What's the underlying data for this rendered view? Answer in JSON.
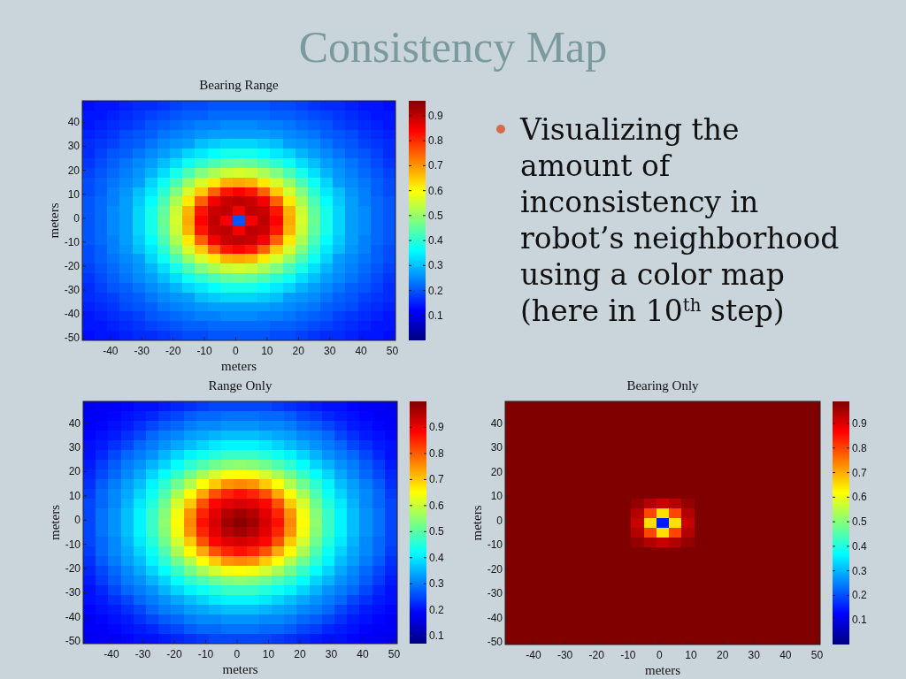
{
  "chart_data": [
    {
      "type": "other",
      "title": "Consistency Map",
      "annotations": [
        "Visualizing the amount of inconsistency in robot’s neighborhood using a color map (here in 10$^{th}$ step)"
      ]
    },
    {
      "type": "heatmap",
      "title": "Bearing Range",
      "xlabel": "meters",
      "ylabel": "meters",
      "x": [
        -47,
        -43,
        -39,
        -35,
        -31,
        -27,
        -23,
        -19,
        -15,
        -11,
        -7,
        -3,
        1,
        5,
        9,
        13,
        17,
        21,
        25,
        29,
        33,
        37,
        41,
        45,
        49
      ],
      "y": [
        47,
        43,
        39,
        35,
        31,
        27,
        23,
        19,
        15,
        11,
        7,
        3,
        -1,
        -5,
        -9,
        -13,
        -17,
        -21,
        -25,
        -29,
        -33,
        -37,
        -41,
        -45,
        -49
      ],
      "xlim": [
        -49,
        51
      ],
      "xticks": [
        -40,
        -30,
        -20,
        -10,
        0,
        10,
        20,
        30,
        40,
        50
      ],
      "ylim": [
        -51,
        49
      ],
      "yticks": [
        -50,
        -40,
        -30,
        -20,
        -10,
        0,
        10,
        20,
        30,
        40
      ],
      "clim": [
        0,
        0.96
      ],
      "cticks": [
        0.1,
        0.2,
        0.3,
        0.4,
        0.5,
        0.6,
        0.7,
        0.8,
        0.9
      ],
      "cells": [
        [
          0.13,
          0.14,
          0.14,
          0.15,
          0.16,
          0.16,
          0.17,
          0.18,
          0.19,
          0.19,
          0.2,
          0.2,
          0.2,
          0.2,
          0.2,
          0.19,
          0.19,
          0.18,
          0.17,
          0.16,
          0.16,
          0.15,
          0.14,
          0.14,
          0.13
        ],
        [
          0.14,
          0.14,
          0.15,
          0.16,
          0.17,
          0.18,
          0.19,
          0.2,
          0.21,
          0.21,
          0.22,
          0.22,
          0.22,
          0.22,
          0.22,
          0.21,
          0.21,
          0.2,
          0.19,
          0.18,
          0.17,
          0.16,
          0.15,
          0.14,
          0.14
        ],
        [
          0.14,
          0.15,
          0.16,
          0.17,
          0.18,
          0.2,
          0.21,
          0.22,
          0.23,
          0.24,
          0.24,
          0.25,
          0.25,
          0.25,
          0.24,
          0.24,
          0.23,
          0.22,
          0.21,
          0.2,
          0.18,
          0.17,
          0.16,
          0.15,
          0.14
        ],
        [
          0.15,
          0.16,
          0.17,
          0.19,
          0.2,
          0.21,
          0.23,
          0.24,
          0.25,
          0.26,
          0.27,
          0.27,
          0.27,
          0.27,
          0.27,
          0.26,
          0.25,
          0.24,
          0.23,
          0.21,
          0.2,
          0.19,
          0.17,
          0.16,
          0.15
        ],
        [
          0.16,
          0.17,
          0.18,
          0.2,
          0.21,
          0.23,
          0.25,
          0.26,
          0.27,
          0.3,
          0.31,
          0.32,
          0.32,
          0.32,
          0.31,
          0.3,
          0.27,
          0.26,
          0.25,
          0.23,
          0.21,
          0.2,
          0.18,
          0.17,
          0.16
        ],
        [
          0.16,
          0.18,
          0.2,
          0.21,
          0.23,
          0.25,
          0.27,
          0.29,
          0.32,
          0.34,
          0.36,
          0.38,
          0.38,
          0.38,
          0.36,
          0.34,
          0.32,
          0.29,
          0.27,
          0.25,
          0.23,
          0.21,
          0.2,
          0.18,
          0.16
        ],
        [
          0.17,
          0.19,
          0.21,
          0.23,
          0.25,
          0.27,
          0.3,
          0.33,
          0.37,
          0.4,
          0.43,
          0.45,
          0.46,
          0.45,
          0.43,
          0.4,
          0.37,
          0.33,
          0.3,
          0.27,
          0.25,
          0.23,
          0.21,
          0.19,
          0.17
        ],
        [
          0.18,
          0.2,
          0.22,
          0.24,
          0.26,
          0.29,
          0.33,
          0.38,
          0.43,
          0.48,
          0.52,
          0.55,
          0.56,
          0.55,
          0.52,
          0.48,
          0.43,
          0.38,
          0.33,
          0.29,
          0.26,
          0.24,
          0.22,
          0.2,
          0.18
        ],
        [
          0.19,
          0.21,
          0.23,
          0.25,
          0.27,
          0.32,
          0.37,
          0.43,
          0.5,
          0.56,
          0.62,
          0.67,
          0.68,
          0.67,
          0.62,
          0.56,
          0.5,
          0.43,
          0.37,
          0.32,
          0.27,
          0.25,
          0.23,
          0.21,
          0.19
        ],
        [
          0.19,
          0.21,
          0.24,
          0.26,
          0.3,
          0.34,
          0.4,
          0.48,
          0.56,
          0.65,
          0.75,
          0.82,
          0.84,
          0.82,
          0.75,
          0.65,
          0.56,
          0.48,
          0.4,
          0.34,
          0.3,
          0.26,
          0.24,
          0.21,
          0.19
        ],
        [
          0.2,
          0.22,
          0.24,
          0.27,
          0.31,
          0.36,
          0.43,
          0.52,
          0.62,
          0.75,
          0.85,
          0.89,
          0.9,
          0.89,
          0.85,
          0.75,
          0.62,
          0.52,
          0.43,
          0.36,
          0.31,
          0.27,
          0.24,
          0.22,
          0.2
        ],
        [
          0.2,
          0.22,
          0.25,
          0.27,
          0.32,
          0.38,
          0.45,
          0.55,
          0.67,
          0.82,
          0.89,
          0.9,
          0.85,
          0.9,
          0.89,
          0.82,
          0.67,
          0.55,
          0.45,
          0.38,
          0.32,
          0.27,
          0.25,
          0.22,
          0.2
        ],
        [
          0.2,
          0.22,
          0.25,
          0.27,
          0.32,
          0.38,
          0.46,
          0.56,
          0.68,
          0.84,
          0.9,
          0.85,
          0.2,
          0.85,
          0.9,
          0.84,
          0.68,
          0.56,
          0.46,
          0.38,
          0.32,
          0.27,
          0.25,
          0.22,
          0.2
        ],
        [
          0.2,
          0.22,
          0.25,
          0.27,
          0.32,
          0.38,
          0.45,
          0.55,
          0.67,
          0.82,
          0.89,
          0.9,
          0.85,
          0.9,
          0.89,
          0.82,
          0.67,
          0.55,
          0.45,
          0.38,
          0.32,
          0.27,
          0.25,
          0.22,
          0.2
        ],
        [
          0.2,
          0.22,
          0.24,
          0.27,
          0.31,
          0.36,
          0.43,
          0.52,
          0.62,
          0.75,
          0.85,
          0.89,
          0.9,
          0.89,
          0.85,
          0.75,
          0.62,
          0.52,
          0.43,
          0.36,
          0.31,
          0.27,
          0.24,
          0.22,
          0.2
        ],
        [
          0.19,
          0.21,
          0.24,
          0.26,
          0.3,
          0.34,
          0.4,
          0.48,
          0.56,
          0.65,
          0.75,
          0.82,
          0.84,
          0.82,
          0.75,
          0.65,
          0.56,
          0.48,
          0.4,
          0.34,
          0.3,
          0.26,
          0.24,
          0.21,
          0.19
        ],
        [
          0.19,
          0.21,
          0.23,
          0.25,
          0.27,
          0.32,
          0.37,
          0.43,
          0.5,
          0.56,
          0.62,
          0.67,
          0.68,
          0.67,
          0.62,
          0.56,
          0.5,
          0.43,
          0.37,
          0.32,
          0.27,
          0.25,
          0.23,
          0.21,
          0.19
        ],
        [
          0.18,
          0.2,
          0.22,
          0.24,
          0.26,
          0.29,
          0.33,
          0.38,
          0.43,
          0.48,
          0.52,
          0.55,
          0.56,
          0.55,
          0.52,
          0.48,
          0.43,
          0.38,
          0.33,
          0.29,
          0.26,
          0.24,
          0.22,
          0.2,
          0.18
        ],
        [
          0.17,
          0.19,
          0.21,
          0.23,
          0.25,
          0.27,
          0.3,
          0.33,
          0.37,
          0.4,
          0.43,
          0.45,
          0.46,
          0.45,
          0.43,
          0.4,
          0.37,
          0.33,
          0.3,
          0.27,
          0.25,
          0.23,
          0.21,
          0.19,
          0.17
        ],
        [
          0.16,
          0.18,
          0.2,
          0.21,
          0.23,
          0.25,
          0.27,
          0.29,
          0.32,
          0.34,
          0.36,
          0.38,
          0.38,
          0.38,
          0.36,
          0.34,
          0.32,
          0.29,
          0.27,
          0.25,
          0.23,
          0.21,
          0.2,
          0.18,
          0.16
        ],
        [
          0.16,
          0.17,
          0.18,
          0.2,
          0.21,
          0.23,
          0.25,
          0.26,
          0.27,
          0.3,
          0.31,
          0.32,
          0.32,
          0.32,
          0.31,
          0.3,
          0.27,
          0.26,
          0.25,
          0.23,
          0.21,
          0.2,
          0.18,
          0.17,
          0.16
        ],
        [
          0.15,
          0.16,
          0.17,
          0.19,
          0.2,
          0.21,
          0.23,
          0.24,
          0.25,
          0.26,
          0.27,
          0.27,
          0.27,
          0.27,
          0.27,
          0.26,
          0.25,
          0.24,
          0.23,
          0.21,
          0.2,
          0.19,
          0.17,
          0.16,
          0.15
        ],
        [
          0.14,
          0.15,
          0.16,
          0.17,
          0.18,
          0.2,
          0.21,
          0.22,
          0.23,
          0.24,
          0.24,
          0.25,
          0.25,
          0.25,
          0.24,
          0.24,
          0.23,
          0.22,
          0.21,
          0.2,
          0.18,
          0.17,
          0.16,
          0.15,
          0.14
        ],
        [
          0.14,
          0.14,
          0.15,
          0.16,
          0.17,
          0.18,
          0.19,
          0.2,
          0.21,
          0.21,
          0.22,
          0.22,
          0.22,
          0.22,
          0.22,
          0.21,
          0.21,
          0.2,
          0.19,
          0.18,
          0.17,
          0.16,
          0.15,
          0.14,
          0.14
        ],
        [
          0.13,
          0.14,
          0.14,
          0.15,
          0.16,
          0.16,
          0.17,
          0.18,
          0.19,
          0.19,
          0.2,
          0.2,
          0.2,
          0.2,
          0.2,
          0.19,
          0.19,
          0.18,
          0.17,
          0.16,
          0.16,
          0.15,
          0.14,
          0.14,
          0.13
        ]
      ]
    },
    {
      "type": "heatmap",
      "title": "Range Only",
      "xlabel": "meters",
      "ylabel": "meters",
      "x": [
        -47,
        -43,
        -39,
        -35,
        -31,
        -27,
        -23,
        -19,
        -15,
        -11,
        -7,
        -3,
        1,
        5,
        9,
        13,
        17,
        21,
        25,
        29,
        33,
        37,
        41,
        45,
        49
      ],
      "y": [
        47,
        43,
        39,
        35,
        31,
        27,
        23,
        19,
        15,
        11,
        7,
        3,
        -1,
        -5,
        -9,
        -13,
        -17,
        -21,
        -25,
        -29,
        -33,
        -37,
        -41,
        -45,
        -49
      ],
      "xlim": [
        -49,
        51
      ],
      "xticks": [
        -40,
        -30,
        -20,
        -10,
        0,
        10,
        20,
        30,
        40,
        50
      ],
      "ylim": [
        -51,
        49
      ],
      "yticks": [
        -50,
        -40,
        -30,
        -20,
        -10,
        0,
        10,
        20,
        30,
        40
      ],
      "clim": [
        0.07,
        1
      ],
      "cticks": [
        0.1,
        0.2,
        0.3,
        0.4,
        0.5,
        0.6,
        0.7,
        0.8,
        0.9
      ],
      "cells": [
        [
          0.17,
          0.18,
          0.18,
          0.19,
          0.2,
          0.2,
          0.21,
          0.22,
          0.23,
          0.24,
          0.25,
          0.25,
          0.25,
          0.25,
          0.25,
          0.24,
          0.23,
          0.22,
          0.21,
          0.2,
          0.2,
          0.19,
          0.18,
          0.18,
          0.17
        ],
        [
          0.18,
          0.18,
          0.19,
          0.2,
          0.21,
          0.22,
          0.24,
          0.25,
          0.27,
          0.28,
          0.28,
          0.29,
          0.29,
          0.29,
          0.28,
          0.28,
          0.27,
          0.25,
          0.24,
          0.22,
          0.21,
          0.2,
          0.19,
          0.18,
          0.18
        ],
        [
          0.18,
          0.19,
          0.2,
          0.21,
          0.23,
          0.25,
          0.27,
          0.28,
          0.3,
          0.31,
          0.31,
          0.32,
          0.32,
          0.32,
          0.31,
          0.31,
          0.3,
          0.28,
          0.27,
          0.25,
          0.23,
          0.21,
          0.2,
          0.19,
          0.18
        ],
        [
          0.19,
          0.2,
          0.21,
          0.23,
          0.25,
          0.28,
          0.3,
          0.31,
          0.33,
          0.34,
          0.35,
          0.36,
          0.36,
          0.36,
          0.35,
          0.34,
          0.33,
          0.31,
          0.3,
          0.28,
          0.25,
          0.23,
          0.21,
          0.2,
          0.19
        ],
        [
          0.2,
          0.21,
          0.23,
          0.25,
          0.28,
          0.3,
          0.32,
          0.34,
          0.36,
          0.38,
          0.4,
          0.41,
          0.41,
          0.41,
          0.4,
          0.38,
          0.36,
          0.34,
          0.32,
          0.3,
          0.28,
          0.25,
          0.23,
          0.21,
          0.2
        ],
        [
          0.2,
          0.22,
          0.25,
          0.28,
          0.3,
          0.32,
          0.35,
          0.38,
          0.41,
          0.43,
          0.45,
          0.47,
          0.47,
          0.47,
          0.45,
          0.43,
          0.41,
          0.38,
          0.35,
          0.32,
          0.3,
          0.28,
          0.25,
          0.22,
          0.2
        ],
        [
          0.21,
          0.24,
          0.27,
          0.3,
          0.32,
          0.35,
          0.38,
          0.42,
          0.46,
          0.49,
          0.52,
          0.54,
          0.55,
          0.54,
          0.52,
          0.49,
          0.46,
          0.42,
          0.38,
          0.35,
          0.32,
          0.3,
          0.27,
          0.24,
          0.21
        ],
        [
          0.22,
          0.25,
          0.28,
          0.31,
          0.34,
          0.38,
          0.42,
          0.47,
          0.52,
          0.57,
          0.61,
          0.64,
          0.65,
          0.64,
          0.61,
          0.57,
          0.52,
          0.47,
          0.42,
          0.38,
          0.34,
          0.31,
          0.28,
          0.25,
          0.22
        ],
        [
          0.23,
          0.27,
          0.3,
          0.33,
          0.36,
          0.41,
          0.46,
          0.52,
          0.58,
          0.65,
          0.7,
          0.75,
          0.76,
          0.75,
          0.7,
          0.65,
          0.58,
          0.52,
          0.46,
          0.41,
          0.36,
          0.33,
          0.3,
          0.27,
          0.23
        ],
        [
          0.24,
          0.28,
          0.31,
          0.34,
          0.38,
          0.43,
          0.49,
          0.57,
          0.65,
          0.73,
          0.81,
          0.85,
          0.87,
          0.85,
          0.81,
          0.73,
          0.65,
          0.57,
          0.49,
          0.43,
          0.38,
          0.34,
          0.31,
          0.28,
          0.24
        ],
        [
          0.25,
          0.28,
          0.31,
          0.35,
          0.4,
          0.45,
          0.52,
          0.61,
          0.7,
          0.81,
          0.88,
          0.91,
          0.92,
          0.91,
          0.88,
          0.81,
          0.7,
          0.61,
          0.52,
          0.45,
          0.4,
          0.35,
          0.31,
          0.28,
          0.25
        ],
        [
          0.25,
          0.29,
          0.32,
          0.36,
          0.41,
          0.47,
          0.54,
          0.64,
          0.75,
          0.85,
          0.91,
          0.95,
          0.97,
          0.95,
          0.91,
          0.85,
          0.75,
          0.64,
          0.54,
          0.47,
          0.41,
          0.36,
          0.32,
          0.29,
          0.25
        ],
        [
          0.25,
          0.29,
          0.32,
          0.36,
          0.41,
          0.47,
          0.55,
          0.65,
          0.76,
          0.87,
          0.92,
          0.97,
          0.99,
          0.97,
          0.92,
          0.87,
          0.76,
          0.65,
          0.55,
          0.47,
          0.41,
          0.36,
          0.32,
          0.29,
          0.25
        ],
        [
          0.25,
          0.29,
          0.32,
          0.36,
          0.41,
          0.47,
          0.54,
          0.64,
          0.75,
          0.85,
          0.91,
          0.95,
          0.97,
          0.95,
          0.91,
          0.85,
          0.75,
          0.64,
          0.54,
          0.47,
          0.41,
          0.36,
          0.32,
          0.29,
          0.25
        ],
        [
          0.25,
          0.28,
          0.31,
          0.35,
          0.4,
          0.45,
          0.52,
          0.61,
          0.7,
          0.81,
          0.88,
          0.91,
          0.92,
          0.91,
          0.88,
          0.81,
          0.7,
          0.61,
          0.52,
          0.45,
          0.4,
          0.35,
          0.31,
          0.28,
          0.25
        ],
        [
          0.24,
          0.28,
          0.31,
          0.34,
          0.38,
          0.43,
          0.49,
          0.57,
          0.65,
          0.73,
          0.81,
          0.85,
          0.87,
          0.85,
          0.81,
          0.73,
          0.65,
          0.57,
          0.49,
          0.43,
          0.38,
          0.34,
          0.31,
          0.28,
          0.24
        ],
        [
          0.23,
          0.27,
          0.3,
          0.33,
          0.36,
          0.41,
          0.46,
          0.52,
          0.58,
          0.65,
          0.7,
          0.75,
          0.76,
          0.75,
          0.7,
          0.65,
          0.58,
          0.52,
          0.46,
          0.41,
          0.36,
          0.33,
          0.3,
          0.27,
          0.23
        ],
        [
          0.22,
          0.25,
          0.28,
          0.31,
          0.34,
          0.38,
          0.42,
          0.47,
          0.52,
          0.57,
          0.61,
          0.64,
          0.65,
          0.64,
          0.61,
          0.57,
          0.52,
          0.47,
          0.42,
          0.38,
          0.34,
          0.31,
          0.28,
          0.25,
          0.22
        ],
        [
          0.21,
          0.24,
          0.27,
          0.3,
          0.32,
          0.35,
          0.38,
          0.42,
          0.46,
          0.49,
          0.52,
          0.54,
          0.55,
          0.54,
          0.52,
          0.49,
          0.46,
          0.42,
          0.38,
          0.35,
          0.32,
          0.3,
          0.27,
          0.24,
          0.21
        ],
        [
          0.2,
          0.22,
          0.25,
          0.28,
          0.3,
          0.32,
          0.35,
          0.38,
          0.41,
          0.43,
          0.45,
          0.47,
          0.47,
          0.47,
          0.45,
          0.43,
          0.41,
          0.38,
          0.35,
          0.32,
          0.3,
          0.28,
          0.25,
          0.22,
          0.2
        ],
        [
          0.2,
          0.21,
          0.23,
          0.25,
          0.28,
          0.3,
          0.32,
          0.34,
          0.36,
          0.38,
          0.4,
          0.41,
          0.41,
          0.41,
          0.4,
          0.38,
          0.36,
          0.34,
          0.32,
          0.3,
          0.28,
          0.25,
          0.23,
          0.21,
          0.2
        ],
        [
          0.19,
          0.2,
          0.21,
          0.23,
          0.25,
          0.28,
          0.3,
          0.31,
          0.33,
          0.34,
          0.35,
          0.36,
          0.36,
          0.36,
          0.35,
          0.34,
          0.33,
          0.31,
          0.3,
          0.28,
          0.25,
          0.23,
          0.21,
          0.2,
          0.19
        ],
        [
          0.18,
          0.19,
          0.2,
          0.21,
          0.23,
          0.25,
          0.27,
          0.28,
          0.3,
          0.31,
          0.31,
          0.32,
          0.32,
          0.32,
          0.31,
          0.31,
          0.3,
          0.28,
          0.27,
          0.25,
          0.23,
          0.21,
          0.2,
          0.19,
          0.18
        ],
        [
          0.18,
          0.18,
          0.19,
          0.2,
          0.21,
          0.22,
          0.24,
          0.25,
          0.27,
          0.28,
          0.28,
          0.29,
          0.29,
          0.29,
          0.28,
          0.28,
          0.27,
          0.25,
          0.24,
          0.22,
          0.21,
          0.2,
          0.19,
          0.18,
          0.18
        ],
        [
          0.17,
          0.18,
          0.18,
          0.19,
          0.2,
          0.2,
          0.21,
          0.22,
          0.23,
          0.24,
          0.25,
          0.25,
          0.25,
          0.25,
          0.25,
          0.24,
          0.23,
          0.22,
          0.21,
          0.2,
          0.2,
          0.19,
          0.18,
          0.18,
          0.17
        ]
      ]
    },
    {
      "type": "heatmap",
      "title": "Bearing Only",
      "xlabel": "meters",
      "ylabel": "meters",
      "x": [
        -47,
        -43,
        -39,
        -35,
        -31,
        -27,
        -23,
        -19,
        -15,
        -11,
        -7,
        -3,
        1,
        5,
        9,
        13,
        17,
        21,
        25,
        29,
        33,
        37,
        41,
        45,
        49
      ],
      "y": [
        47,
        43,
        39,
        35,
        31,
        27,
        23,
        19,
        15,
        11,
        7,
        3,
        -1,
        -5,
        -9,
        -13,
        -17,
        -21,
        -25,
        -29,
        -33,
        -37,
        -41,
        -45,
        -49
      ],
      "xlim": [
        -49,
        51
      ],
      "xticks": [
        -40,
        -30,
        -20,
        -10,
        0,
        10,
        20,
        30,
        40,
        50
      ],
      "ylim": [
        -51,
        49
      ],
      "yticks": [
        -50,
        -40,
        -30,
        -20,
        -10,
        0,
        10,
        20,
        30,
        40
      ],
      "clim": [
        0,
        0.99
      ],
      "cticks": [
        0.1,
        0.2,
        0.3,
        0.4,
        0.5,
        0.6,
        0.7,
        0.8,
        0.9
      ],
      "cells": [
        [
          0.99,
          0.99,
          0.99,
          0.99,
          0.99,
          0.99,
          0.99,
          0.99,
          0.99,
          0.99,
          0.99,
          0.99,
          0.99,
          0.99,
          0.99,
          0.99,
          0.99,
          0.99,
          0.99,
          0.99,
          0.99,
          0.99,
          0.99,
          0.99,
          0.99
        ],
        [
          0.99,
          0.99,
          0.99,
          0.99,
          0.99,
          0.99,
          0.99,
          0.99,
          0.99,
          0.99,
          0.99,
          0.99,
          0.99,
          0.99,
          0.99,
          0.99,
          0.99,
          0.99,
          0.99,
          0.99,
          0.99,
          0.99,
          0.99,
          0.99,
          0.99
        ],
        [
          0.99,
          0.99,
          0.99,
          0.99,
          0.99,
          0.99,
          0.99,
          0.99,
          0.99,
          0.99,
          0.99,
          0.99,
          0.99,
          0.99,
          0.99,
          0.99,
          0.99,
          0.99,
          0.99,
          0.99,
          0.99,
          0.99,
          0.99,
          0.99,
          0.99
        ],
        [
          0.99,
          0.99,
          0.99,
          0.99,
          0.99,
          0.99,
          0.99,
          0.99,
          0.99,
          0.99,
          0.99,
          0.99,
          0.99,
          0.99,
          0.99,
          0.99,
          0.99,
          0.99,
          0.99,
          0.99,
          0.99,
          0.99,
          0.99,
          0.99,
          0.99
        ],
        [
          0.99,
          0.99,
          0.99,
          0.99,
          0.99,
          0.99,
          0.99,
          0.99,
          0.99,
          0.99,
          0.99,
          0.99,
          0.99,
          0.99,
          0.99,
          0.99,
          0.99,
          0.99,
          0.99,
          0.99,
          0.99,
          0.99,
          0.99,
          0.99,
          0.99
        ],
        [
          0.99,
          0.99,
          0.99,
          0.99,
          0.99,
          0.99,
          0.99,
          0.99,
          0.99,
          0.99,
          0.99,
          0.99,
          0.99,
          0.99,
          0.99,
          0.99,
          0.99,
          0.99,
          0.99,
          0.99,
          0.99,
          0.99,
          0.99,
          0.99,
          0.99
        ],
        [
          0.99,
          0.99,
          0.99,
          0.99,
          0.99,
          0.99,
          0.99,
          0.99,
          0.99,
          0.99,
          0.99,
          0.99,
          0.99,
          0.99,
          0.99,
          0.99,
          0.99,
          0.99,
          0.99,
          0.99,
          0.99,
          0.99,
          0.99,
          0.99,
          0.99
        ],
        [
          0.99,
          0.99,
          0.99,
          0.99,
          0.99,
          0.99,
          0.99,
          0.99,
          0.99,
          0.99,
          0.99,
          0.99,
          0.99,
          0.99,
          0.99,
          0.99,
          0.99,
          0.99,
          0.99,
          0.99,
          0.99,
          0.99,
          0.99,
          0.99,
          0.99
        ],
        [
          0.99,
          0.99,
          0.99,
          0.99,
          0.99,
          0.99,
          0.99,
          0.99,
          0.99,
          0.99,
          0.99,
          0.99,
          0.99,
          0.99,
          0.99,
          0.99,
          0.99,
          0.99,
          0.99,
          0.99,
          0.99,
          0.99,
          0.99,
          0.99,
          0.99
        ],
        [
          0.99,
          0.99,
          0.99,
          0.99,
          0.99,
          0.99,
          0.99,
          0.99,
          0.99,
          0.99,
          0.99,
          0.99,
          0.99,
          0.99,
          0.99,
          0.99,
          0.99,
          0.99,
          0.99,
          0.99,
          0.99,
          0.99,
          0.99,
          0.99,
          0.99
        ],
        [
          0.99,
          0.99,
          0.99,
          0.99,
          0.99,
          0.99,
          0.99,
          0.99,
          0.99,
          0.99,
          0.97,
          0.94,
          0.92,
          0.94,
          0.97,
          0.99,
          0.99,
          0.99,
          0.99,
          0.99,
          0.99,
          0.99,
          0.99,
          0.99,
          0.99
        ],
        [
          0.99,
          0.99,
          0.99,
          0.99,
          0.99,
          0.99,
          0.99,
          0.99,
          0.99,
          0.99,
          0.94,
          0.8,
          0.65,
          0.8,
          0.94,
          0.99,
          0.99,
          0.99,
          0.99,
          0.99,
          0.99,
          0.99,
          0.99,
          0.99,
          0.99
        ],
        [
          0.99,
          0.99,
          0.99,
          0.99,
          0.99,
          0.99,
          0.99,
          0.99,
          0.99,
          0.99,
          0.92,
          0.65,
          0.15,
          0.65,
          0.92,
          0.99,
          0.99,
          0.99,
          0.99,
          0.99,
          0.99,
          0.99,
          0.99,
          0.99,
          0.99
        ],
        [
          0.99,
          0.99,
          0.99,
          0.99,
          0.99,
          0.99,
          0.99,
          0.99,
          0.99,
          0.99,
          0.94,
          0.8,
          0.65,
          0.8,
          0.94,
          0.99,
          0.99,
          0.99,
          0.99,
          0.99,
          0.99,
          0.99,
          0.99,
          0.99,
          0.99
        ],
        [
          0.99,
          0.99,
          0.99,
          0.99,
          0.99,
          0.99,
          0.99,
          0.99,
          0.99,
          0.99,
          0.97,
          0.94,
          0.92,
          0.94,
          0.97,
          0.99,
          0.99,
          0.99,
          0.99,
          0.99,
          0.99,
          0.99,
          0.99,
          0.99,
          0.99
        ],
        [
          0.99,
          0.99,
          0.99,
          0.99,
          0.99,
          0.99,
          0.99,
          0.99,
          0.99,
          0.99,
          0.99,
          0.99,
          0.99,
          0.99,
          0.99,
          0.99,
          0.99,
          0.99,
          0.99,
          0.99,
          0.99,
          0.99,
          0.99,
          0.99,
          0.99
        ],
        [
          0.99,
          0.99,
          0.99,
          0.99,
          0.99,
          0.99,
          0.99,
          0.99,
          0.99,
          0.99,
          0.99,
          0.99,
          0.99,
          0.99,
          0.99,
          0.99,
          0.99,
          0.99,
          0.99,
          0.99,
          0.99,
          0.99,
          0.99,
          0.99,
          0.99
        ],
        [
          0.99,
          0.99,
          0.99,
          0.99,
          0.99,
          0.99,
          0.99,
          0.99,
          0.99,
          0.99,
          0.99,
          0.99,
          0.99,
          0.99,
          0.99,
          0.99,
          0.99,
          0.99,
          0.99,
          0.99,
          0.99,
          0.99,
          0.99,
          0.99,
          0.99
        ],
        [
          0.99,
          0.99,
          0.99,
          0.99,
          0.99,
          0.99,
          0.99,
          0.99,
          0.99,
          0.99,
          0.99,
          0.99,
          0.99,
          0.99,
          0.99,
          0.99,
          0.99,
          0.99,
          0.99,
          0.99,
          0.99,
          0.99,
          0.99,
          0.99,
          0.99
        ],
        [
          0.99,
          0.99,
          0.99,
          0.99,
          0.99,
          0.99,
          0.99,
          0.99,
          0.99,
          0.99,
          0.99,
          0.99,
          0.99,
          0.99,
          0.99,
          0.99,
          0.99,
          0.99,
          0.99,
          0.99,
          0.99,
          0.99,
          0.99,
          0.99,
          0.99
        ],
        [
          0.99,
          0.99,
          0.99,
          0.99,
          0.99,
          0.99,
          0.99,
          0.99,
          0.99,
          0.99,
          0.99,
          0.99,
          0.99,
          0.99,
          0.99,
          0.99,
          0.99,
          0.99,
          0.99,
          0.99,
          0.99,
          0.99,
          0.99,
          0.99,
          0.99
        ],
        [
          0.99,
          0.99,
          0.99,
          0.99,
          0.99,
          0.99,
          0.99,
          0.99,
          0.99,
          0.99,
          0.99,
          0.99,
          0.99,
          0.99,
          0.99,
          0.99,
          0.99,
          0.99,
          0.99,
          0.99,
          0.99,
          0.99,
          0.99,
          0.99,
          0.99
        ],
        [
          0.99,
          0.99,
          0.99,
          0.99,
          0.99,
          0.99,
          0.99,
          0.99,
          0.99,
          0.99,
          0.99,
          0.99,
          0.99,
          0.99,
          0.99,
          0.99,
          0.99,
          0.99,
          0.99,
          0.99,
          0.99,
          0.99,
          0.99,
          0.99,
          0.99
        ],
        [
          0.99,
          0.99,
          0.99,
          0.99,
          0.99,
          0.99,
          0.99,
          0.99,
          0.99,
          0.99,
          0.99,
          0.99,
          0.99,
          0.99,
          0.99,
          0.99,
          0.99,
          0.99,
          0.99,
          0.99,
          0.99,
          0.99,
          0.99,
          0.99,
          0.99
        ],
        [
          0.99,
          0.99,
          0.99,
          0.99,
          0.99,
          0.99,
          0.99,
          0.99,
          0.99,
          0.99,
          0.99,
          0.99,
          0.99,
          0.99,
          0.99,
          0.99,
          0.99,
          0.99,
          0.99,
          0.99,
          0.99,
          0.99,
          0.99,
          0.99,
          0.99
        ]
      ]
    }
  ]
}
